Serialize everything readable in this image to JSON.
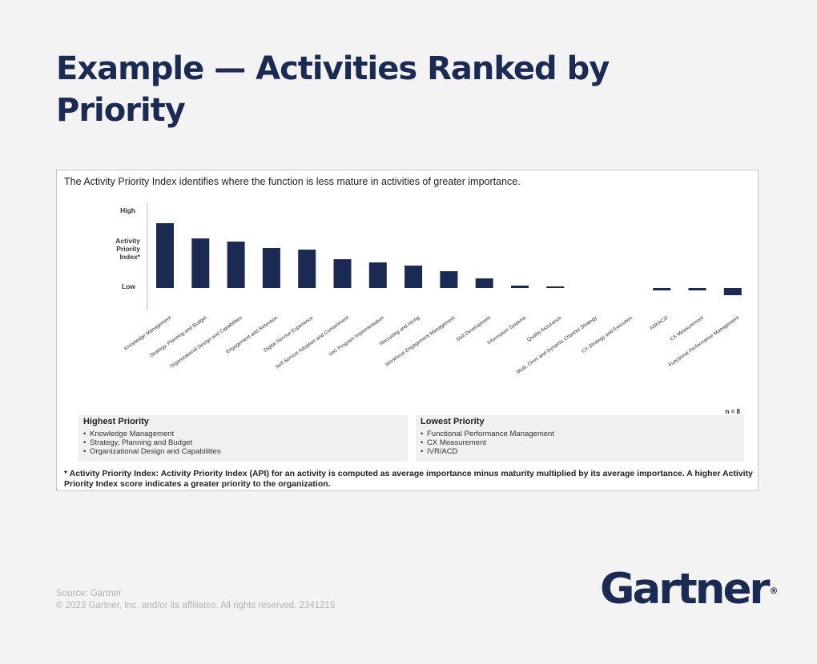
{
  "slide_title": "Example — Activities Ranked by Priority",
  "intro": "The Activity Priority Index identifies where the function is less mature in activities of greater importance.",
  "axis_labels": {
    "high": "High",
    "index_line1": "Activity",
    "index_line2": "Priority",
    "index_line3": "Index*",
    "low": "Low"
  },
  "sample_size": "n = 8",
  "highest_priority": {
    "title": "Highest Priority",
    "items": [
      "Knowledge Management",
      "Strategy, Planning and Budget",
      "Organizational Design and Capabilities"
    ]
  },
  "lowest_priority": {
    "title": "Lowest Priority",
    "items": [
      "Functional Performance Management",
      "CX Measurement",
      "IVR/ACD"
    ]
  },
  "footnote": "* Activity Priority Index: Activity Priority Index (API) for an activity is computed as average importance minus maturity multiplied by its average importance. A higher Activity Priority Index score indicates a greater priority to the organization.",
  "source_line1": "Source: Gartner",
  "source_line2": "© 2023 Gartner, Inc. and/or its affiliates. All rights reserved. 2341215",
  "logo": "Gartner",
  "colors": {
    "bar": "#1b2a52",
    "title": "#1b2a52",
    "axis": "#bbbbbb"
  },
  "chart_data": {
    "type": "bar",
    "categories": [
      "Knowledge Management",
      "Strategy, Planning and Budget",
      "Organizational Design and Capabilities",
      "Engagement and Retention",
      "Digital Service Experience",
      "Self-Service Adoption and Containment",
      "VoC Program Implementation",
      "Recruiting and Hiring",
      "Workforce Engagement Management",
      "Skill Development",
      "Information Systems",
      "Quality Assurance",
      "Multi, Omni and Dynamic Channel Strategy",
      "CX Strategy and Execution",
      "IVR/ACD",
      "CX Measurement",
      "Functional Performance Management"
    ],
    "values": [
      81,
      62,
      58,
      50,
      48,
      36,
      32,
      28,
      21,
      12,
      3,
      2,
      0,
      0,
      -3,
      -3,
      -9
    ],
    "ylim": [
      -20,
      100
    ],
    "grid": false,
    "legend": "none"
  }
}
